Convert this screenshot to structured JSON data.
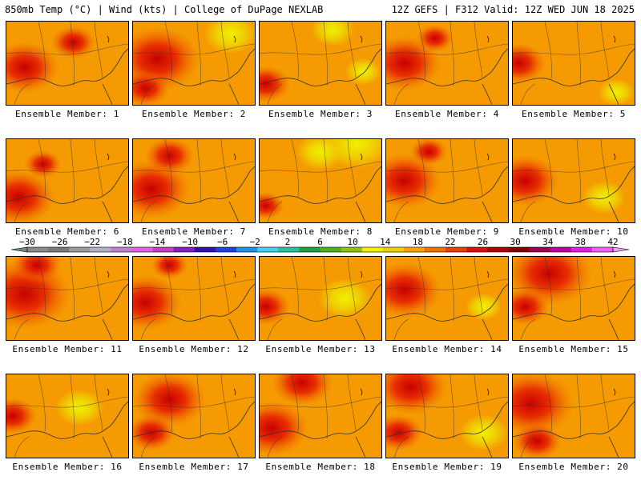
{
  "header": {
    "left_title": "850mb Temp (°C) | Wind (kts) | College of DuPage NEXLAB",
    "right_title": "12Z GEFS | F312 Valid: 12Z WED JUN 18 2025"
  },
  "panel_label_prefix": "Ensemble Member: ",
  "panels": [
    {
      "label": "Ensemble Member: 1",
      "hot": [
        [
          0.15,
          0.55,
          0.28
        ],
        [
          0.55,
          0.25,
          0.18
        ]
      ],
      "cool": []
    },
    {
      "label": "Ensemble Member: 2",
      "hot": [
        [
          0.2,
          0.45,
          0.35
        ],
        [
          0.1,
          0.8,
          0.2
        ]
      ],
      "cool": [
        [
          0.8,
          0.15,
          0.22
        ]
      ]
    },
    {
      "label": "Ensemble Member: 3",
      "hot": [
        [
          0.05,
          0.75,
          0.2
        ]
      ],
      "cool": [
        [
          0.6,
          0.1,
          0.18
        ],
        [
          0.85,
          0.6,
          0.15
        ]
      ]
    },
    {
      "label": "Ensemble Member: 4",
      "hot": [
        [
          0.15,
          0.5,
          0.3
        ],
        [
          0.4,
          0.2,
          0.15
        ]
      ],
      "cool": []
    },
    {
      "label": "Ensemble Member: 5",
      "hot": [
        [
          0.05,
          0.5,
          0.22
        ]
      ],
      "cool": [
        [
          0.85,
          0.85,
          0.15
        ]
      ]
    },
    {
      "label": "Ensemble Member: 6",
      "hot": [
        [
          0.1,
          0.7,
          0.3
        ],
        [
          0.3,
          0.3,
          0.15
        ]
      ],
      "cool": []
    },
    {
      "label": "Ensemble Member: 7",
      "hot": [
        [
          0.15,
          0.6,
          0.32
        ],
        [
          0.3,
          0.2,
          0.2
        ]
      ],
      "cool": []
    },
    {
      "label": "Ensemble Member: 8",
      "hot": [
        [
          0.05,
          0.8,
          0.15
        ]
      ],
      "cool": [
        [
          0.8,
          0.05,
          0.28
        ],
        [
          0.5,
          0.15,
          0.2
        ]
      ]
    },
    {
      "label": "Ensemble Member: 9",
      "hot": [
        [
          0.15,
          0.5,
          0.3
        ],
        [
          0.35,
          0.15,
          0.15
        ]
      ],
      "cool": []
    },
    {
      "label": "Ensemble Member: 10",
      "hot": [
        [
          0.1,
          0.5,
          0.28
        ]
      ],
      "cool": [
        [
          0.75,
          0.7,
          0.18
        ]
      ]
    },
    {
      "label": "Ensemble Member: 11",
      "hot": [
        [
          0.15,
          0.45,
          0.38
        ],
        [
          0.25,
          0.1,
          0.2
        ]
      ],
      "cool": []
    },
    {
      "label": "Ensemble Member: 12",
      "hot": [
        [
          0.1,
          0.55,
          0.3
        ],
        [
          0.3,
          0.1,
          0.15
        ]
      ],
      "cool": []
    },
    {
      "label": "Ensemble Member: 13",
      "hot": [
        [
          0.05,
          0.6,
          0.2
        ]
      ],
      "cool": [
        [
          0.7,
          0.5,
          0.22
        ]
      ]
    },
    {
      "label": "Ensemble Member: 14",
      "hot": [
        [
          0.15,
          0.4,
          0.3
        ]
      ],
      "cool": [
        [
          0.8,
          0.6,
          0.15
        ]
      ]
    },
    {
      "label": "Ensemble Member: 15",
      "hot": [
        [
          0.3,
          0.2,
          0.35
        ],
        [
          0.1,
          0.6,
          0.2
        ]
      ],
      "cool": []
    },
    {
      "label": "Ensemble Member: 16",
      "hot": [
        [
          0.05,
          0.5,
          0.2
        ]
      ],
      "cool": [
        [
          0.6,
          0.4,
          0.2
        ]
      ]
    },
    {
      "label": "Ensemble Member: 17",
      "hot": [
        [
          0.3,
          0.3,
          0.3
        ],
        [
          0.15,
          0.7,
          0.2
        ]
      ],
      "cool": []
    },
    {
      "label": "Ensemble Member: 18",
      "hot": [
        [
          0.1,
          0.65,
          0.3
        ],
        [
          0.35,
          0.1,
          0.25
        ]
      ],
      "cool": []
    },
    {
      "label": "Ensemble Member: 19",
      "hot": [
        [
          0.2,
          0.15,
          0.3
        ],
        [
          0.1,
          0.7,
          0.2
        ]
      ],
      "cool": [
        [
          0.8,
          0.7,
          0.2
        ]
      ]
    },
    {
      "label": "Ensemble Member: 20",
      "hot": [
        [
          0.15,
          0.35,
          0.35
        ],
        [
          0.2,
          0.8,
          0.2
        ]
      ],
      "cool": []
    }
  ],
  "colorbar": {
    "tick_labels": [
      "−30",
      "−26",
      "−22",
      "−18",
      "−14",
      "−10",
      "−6",
      "−2",
      "2",
      "6",
      "10",
      "14",
      "18",
      "22",
      "26",
      "30",
      "34",
      "38",
      "42"
    ],
    "tick_values": [
      -30,
      -26,
      -22,
      -18,
      -14,
      -10,
      -6,
      -2,
      2,
      6,
      10,
      14,
      18,
      22,
      26,
      30,
      34,
      38,
      42
    ],
    "colors": [
      "#6e8e78",
      "#8a8a8a",
      "#7a7a7a",
      "#9a9a9a",
      "#b0b0c8",
      "#c080d0",
      "#e060e0",
      "#c040c0",
      "#8020c0",
      "#3010b0",
      "#2040e0",
      "#2090e0",
      "#40d0f0",
      "#30c0a0",
      "#20a040",
      "#50b020",
      "#90c010",
      "#f0f000",
      "#f0d000",
      "#f7a400",
      "#f07000",
      "#e84000",
      "#d81010",
      "#b00000",
      "#800000",
      "#a00050",
      "#c000a0",
      "#e020e0",
      "#f060f0",
      "#f0a0f0"
    ]
  }
}
